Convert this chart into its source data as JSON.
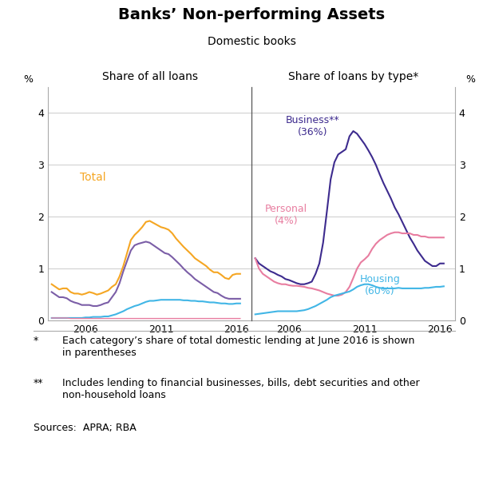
{
  "title": "Banks’ Non-performing Assets",
  "subtitle": "Domestic books",
  "left_panel_title": "Share of all loans",
  "right_panel_title": "Share of loans by type*",
  "ylabel_left": "%",
  "ylabel_right": "%",
  "ylim": [
    0,
    4.5
  ],
  "yticks": [
    0,
    1,
    2,
    3,
    4
  ],
  "xlim_left": [
    2003.5,
    2017.0
  ],
  "xlim_right": [
    2003.5,
    2017.0
  ],
  "xticks": [
    2006,
    2011,
    2016
  ],
  "footnote1_star": "*",
  "footnote1_text": "Each category’s share of total domestic lending at June 2016 is shown\nin parentheses",
  "footnote2_star": "**",
  "footnote2_text": "Includes lending to financial businesses, bills, debt securities and other\nnon-household loans",
  "footnote3": "Sources:  APRA; RBA",
  "colors": {
    "total": "#F5A623",
    "housing_left": "#41B6E6",
    "personal_left": "#E87DA0",
    "business_left": "#7B5EA7",
    "business_right": "#3D2B8E",
    "personal_right": "#E87DA0",
    "housing_right": "#41B6E6",
    "grid": "#CCCCCC",
    "divider": "#555555"
  },
  "left_total_x": [
    2003.75,
    2004.0,
    2004.25,
    2004.5,
    2004.75,
    2005.0,
    2005.25,
    2005.5,
    2005.75,
    2006.0,
    2006.25,
    2006.5,
    2006.75,
    2007.0,
    2007.25,
    2007.5,
    2007.75,
    2008.0,
    2008.25,
    2008.5,
    2008.75,
    2009.0,
    2009.25,
    2009.5,
    2009.75,
    2010.0,
    2010.25,
    2010.5,
    2010.75,
    2011.0,
    2011.25,
    2011.5,
    2011.75,
    2012.0,
    2012.25,
    2012.5,
    2012.75,
    2013.0,
    2013.25,
    2013.5,
    2013.75,
    2014.0,
    2014.25,
    2014.5,
    2014.75,
    2015.0,
    2015.25,
    2015.5,
    2015.75,
    2016.0,
    2016.25
  ],
  "left_total_y": [
    0.7,
    0.65,
    0.6,
    0.62,
    0.62,
    0.55,
    0.52,
    0.52,
    0.5,
    0.52,
    0.55,
    0.53,
    0.5,
    0.52,
    0.55,
    0.58,
    0.65,
    0.7,
    0.85,
    1.05,
    1.3,
    1.55,
    1.65,
    1.72,
    1.8,
    1.9,
    1.92,
    1.88,
    1.84,
    1.8,
    1.78,
    1.75,
    1.68,
    1.58,
    1.5,
    1.42,
    1.35,
    1.28,
    1.2,
    1.15,
    1.1,
    1.05,
    0.98,
    0.93,
    0.93,
    0.88,
    0.82,
    0.8,
    0.88,
    0.9,
    0.9
  ],
  "left_business_x": [
    2003.75,
    2004.0,
    2004.25,
    2004.5,
    2004.75,
    2005.0,
    2005.25,
    2005.5,
    2005.75,
    2006.0,
    2006.25,
    2006.5,
    2006.75,
    2007.0,
    2007.25,
    2007.5,
    2007.75,
    2008.0,
    2008.25,
    2008.5,
    2008.75,
    2009.0,
    2009.25,
    2009.5,
    2009.75,
    2010.0,
    2010.25,
    2010.5,
    2010.75,
    2011.0,
    2011.25,
    2011.5,
    2011.75,
    2012.0,
    2012.25,
    2012.5,
    2012.75,
    2013.0,
    2013.25,
    2013.5,
    2013.75,
    2014.0,
    2014.25,
    2014.5,
    2014.75,
    2015.0,
    2015.25,
    2015.5,
    2015.75,
    2016.0,
    2016.25
  ],
  "left_business_y": [
    0.55,
    0.5,
    0.45,
    0.45,
    0.43,
    0.38,
    0.35,
    0.33,
    0.3,
    0.3,
    0.3,
    0.28,
    0.28,
    0.3,
    0.33,
    0.35,
    0.45,
    0.55,
    0.72,
    0.95,
    1.15,
    1.35,
    1.45,
    1.48,
    1.5,
    1.52,
    1.5,
    1.45,
    1.4,
    1.35,
    1.3,
    1.28,
    1.22,
    1.15,
    1.08,
    1.0,
    0.93,
    0.87,
    0.8,
    0.75,
    0.7,
    0.65,
    0.6,
    0.55,
    0.53,
    0.48,
    0.44,
    0.42,
    0.42,
    0.42,
    0.42
  ],
  "left_housing_x": [
    2003.75,
    2004.0,
    2004.25,
    2004.5,
    2004.75,
    2005.0,
    2005.25,
    2005.5,
    2005.75,
    2006.0,
    2006.25,
    2006.5,
    2006.75,
    2007.0,
    2007.25,
    2007.5,
    2007.75,
    2008.0,
    2008.25,
    2008.5,
    2008.75,
    2009.0,
    2009.25,
    2009.5,
    2009.75,
    2010.0,
    2010.25,
    2010.5,
    2010.75,
    2011.0,
    2011.25,
    2011.5,
    2011.75,
    2012.0,
    2012.25,
    2012.5,
    2012.75,
    2013.0,
    2013.25,
    2013.5,
    2013.75,
    2014.0,
    2014.25,
    2014.5,
    2014.75,
    2015.0,
    2015.25,
    2015.5,
    2015.75,
    2016.0,
    2016.25
  ],
  "left_housing_y": [
    0.05,
    0.05,
    0.05,
    0.05,
    0.05,
    0.05,
    0.05,
    0.05,
    0.05,
    0.06,
    0.06,
    0.07,
    0.07,
    0.07,
    0.08,
    0.08,
    0.1,
    0.12,
    0.15,
    0.18,
    0.22,
    0.25,
    0.28,
    0.3,
    0.33,
    0.36,
    0.38,
    0.38,
    0.39,
    0.4,
    0.4,
    0.4,
    0.4,
    0.4,
    0.4,
    0.39,
    0.39,
    0.38,
    0.38,
    0.37,
    0.37,
    0.36,
    0.35,
    0.35,
    0.34,
    0.33,
    0.33,
    0.32,
    0.32,
    0.33,
    0.33
  ],
  "left_personal_x": [
    2003.75,
    2004.0,
    2004.25,
    2004.5,
    2004.75,
    2005.0,
    2005.25,
    2005.5,
    2005.75,
    2006.0,
    2006.25,
    2006.5,
    2006.75,
    2007.0,
    2007.25,
    2007.5,
    2007.75,
    2008.0,
    2008.25,
    2008.5,
    2008.75,
    2009.0,
    2009.25,
    2009.5,
    2009.75,
    2010.0,
    2010.25,
    2010.5,
    2010.75,
    2011.0,
    2011.25,
    2011.5,
    2011.75,
    2012.0,
    2012.25,
    2012.5,
    2012.75,
    2013.0,
    2013.25,
    2013.5,
    2013.75,
    2014.0,
    2014.25,
    2014.5,
    2014.75,
    2015.0,
    2015.25,
    2015.5,
    2015.75,
    2016.0,
    2016.25
  ],
  "left_personal_y": [
    0.05,
    0.05,
    0.05,
    0.05,
    0.05,
    0.04,
    0.04,
    0.04,
    0.04,
    0.04,
    0.04,
    0.04,
    0.04,
    0.04,
    0.04,
    0.04,
    0.04,
    0.04,
    0.04,
    0.04,
    0.04,
    0.04,
    0.04,
    0.04,
    0.04,
    0.04,
    0.04,
    0.04,
    0.04,
    0.04,
    0.04,
    0.04,
    0.04,
    0.04,
    0.04,
    0.04,
    0.04,
    0.04,
    0.04,
    0.04,
    0.04,
    0.04,
    0.04,
    0.04,
    0.04,
    0.04,
    0.04,
    0.04,
    0.04,
    0.04,
    0.04
  ],
  "right_business_x": [
    2003.75,
    2004.0,
    2004.25,
    2004.5,
    2004.75,
    2005.0,
    2005.25,
    2005.5,
    2005.75,
    2006.0,
    2006.25,
    2006.5,
    2006.75,
    2007.0,
    2007.25,
    2007.5,
    2007.75,
    2008.0,
    2008.25,
    2008.5,
    2008.75,
    2009.0,
    2009.25,
    2009.5,
    2009.75,
    2010.0,
    2010.25,
    2010.5,
    2010.75,
    2011.0,
    2011.25,
    2011.5,
    2011.75,
    2012.0,
    2012.25,
    2012.5,
    2012.75,
    2013.0,
    2013.25,
    2013.5,
    2013.75,
    2014.0,
    2014.25,
    2014.5,
    2014.75,
    2015.0,
    2015.25,
    2015.5,
    2015.75,
    2016.0,
    2016.25
  ],
  "right_business_y": [
    1.2,
    1.1,
    1.05,
    1.0,
    0.95,
    0.92,
    0.88,
    0.85,
    0.8,
    0.78,
    0.75,
    0.72,
    0.7,
    0.7,
    0.72,
    0.75,
    0.9,
    1.1,
    1.5,
    2.1,
    2.72,
    3.05,
    3.2,
    3.25,
    3.3,
    3.55,
    3.65,
    3.6,
    3.5,
    3.4,
    3.28,
    3.15,
    3.0,
    2.82,
    2.65,
    2.5,
    2.35,
    2.18,
    2.05,
    1.9,
    1.75,
    1.6,
    1.48,
    1.35,
    1.25,
    1.15,
    1.1,
    1.05,
    1.05,
    1.1,
    1.1
  ],
  "right_personal_x": [
    2003.75,
    2004.0,
    2004.25,
    2004.5,
    2004.75,
    2005.0,
    2005.25,
    2005.5,
    2005.75,
    2006.0,
    2006.25,
    2006.5,
    2006.75,
    2007.0,
    2007.25,
    2007.5,
    2007.75,
    2008.0,
    2008.25,
    2008.5,
    2008.75,
    2009.0,
    2009.25,
    2009.5,
    2009.75,
    2010.0,
    2010.25,
    2010.5,
    2010.75,
    2011.0,
    2011.25,
    2011.5,
    2011.75,
    2012.0,
    2012.25,
    2012.5,
    2012.75,
    2013.0,
    2013.25,
    2013.5,
    2013.75,
    2014.0,
    2014.25,
    2014.5,
    2014.75,
    2015.0,
    2015.25,
    2015.5,
    2015.75,
    2016.0,
    2016.25
  ],
  "right_personal_y": [
    1.2,
    1.0,
    0.9,
    0.85,
    0.8,
    0.75,
    0.72,
    0.7,
    0.7,
    0.68,
    0.67,
    0.67,
    0.66,
    0.65,
    0.63,
    0.62,
    0.6,
    0.58,
    0.55,
    0.52,
    0.5,
    0.48,
    0.48,
    0.5,
    0.55,
    0.65,
    0.82,
    1.0,
    1.12,
    1.18,
    1.25,
    1.38,
    1.48,
    1.55,
    1.6,
    1.65,
    1.68,
    1.7,
    1.7,
    1.68,
    1.68,
    1.68,
    1.65,
    1.65,
    1.62,
    1.62,
    1.6,
    1.6,
    1.6,
    1.6,
    1.6
  ],
  "right_housing_x": [
    2003.75,
    2004.0,
    2004.25,
    2004.5,
    2004.75,
    2005.0,
    2005.25,
    2005.5,
    2005.75,
    2006.0,
    2006.25,
    2006.5,
    2006.75,
    2007.0,
    2007.25,
    2007.5,
    2007.75,
    2008.0,
    2008.25,
    2008.5,
    2008.75,
    2009.0,
    2009.25,
    2009.5,
    2009.75,
    2010.0,
    2010.25,
    2010.5,
    2010.75,
    2011.0,
    2011.25,
    2011.5,
    2011.75,
    2012.0,
    2012.25,
    2012.5,
    2012.75,
    2013.0,
    2013.25,
    2013.5,
    2013.75,
    2014.0,
    2014.25,
    2014.5,
    2014.75,
    2015.0,
    2015.25,
    2015.5,
    2015.75,
    2016.0,
    2016.25
  ],
  "right_housing_y": [
    0.12,
    0.13,
    0.14,
    0.15,
    0.16,
    0.17,
    0.18,
    0.18,
    0.18,
    0.18,
    0.18,
    0.18,
    0.19,
    0.2,
    0.22,
    0.25,
    0.28,
    0.32,
    0.36,
    0.4,
    0.45,
    0.48,
    0.5,
    0.52,
    0.54,
    0.56,
    0.6,
    0.65,
    0.68,
    0.7,
    0.7,
    0.68,
    0.65,
    0.63,
    0.62,
    0.62,
    0.62,
    0.62,
    0.63,
    0.62,
    0.62,
    0.62,
    0.62,
    0.62,
    0.62,
    0.63,
    0.63,
    0.64,
    0.65,
    0.65,
    0.66
  ]
}
